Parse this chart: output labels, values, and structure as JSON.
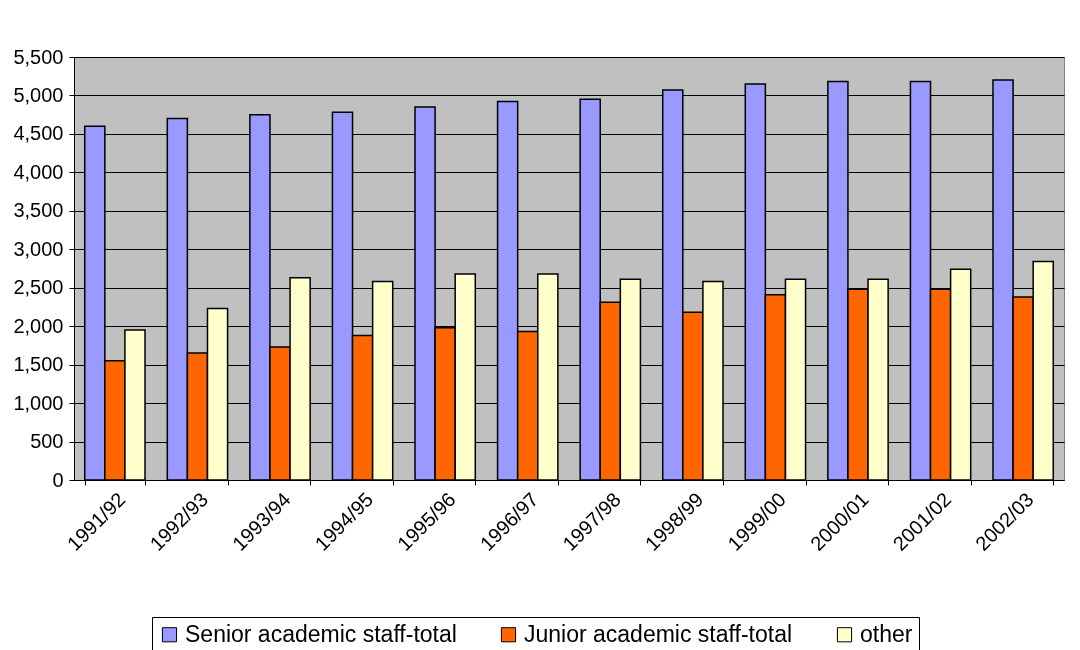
{
  "chart_data": {
    "type": "bar",
    "categories": [
      "1991/92",
      "1992/93",
      "1993/94",
      "1994/95",
      "1995/96",
      "1996/97",
      "1997/98",
      "1998/99",
      "1999/00",
      "2000/01",
      "2001/02",
      "2002/03"
    ],
    "series": [
      {
        "name": "Senior academic staff-total",
        "color": "#9999ff",
        "values": [
          4600,
          4700,
          4750,
          4780,
          4850,
          4920,
          4950,
          5070,
          5150,
          5180,
          5180,
          5200
        ]
      },
      {
        "name": "Junior academic staff-total",
        "color": "#ff6600",
        "values": [
          1550,
          1650,
          1730,
          1880,
          1980,
          1930,
          2310,
          2180,
          2410,
          2480,
          2480,
          2380
        ]
      },
      {
        "name": "other",
        "color": "#ffffcc",
        "values": [
          1950,
          2230,
          2630,
          2580,
          2680,
          2680,
          2610,
          2580,
          2610,
          2610,
          2740,
          2840
        ]
      }
    ],
    "ylim": [
      0,
      5500
    ],
    "yticks": [
      0,
      500,
      {
        "value": 1000,
        "label": "1,000"
      },
      {
        "value": 1500,
        "label": "1,500"
      },
      {
        "value": 2000,
        "label": "2,000"
      },
      {
        "value": 2500,
        "label": "2,500"
      },
      {
        "value": 3000,
        "label": "3,000"
      },
      {
        "value": 3500,
        "label": "3,500"
      },
      {
        "value": 4000,
        "label": "4,000"
      },
      {
        "value": 4500,
        "label": "4,500"
      },
      {
        "value": 5000,
        "label": "5,000"
      },
      {
        "value": 5500,
        "label": "5,500"
      }
    ],
    "grid": "y",
    "legend": "bottom"
  }
}
